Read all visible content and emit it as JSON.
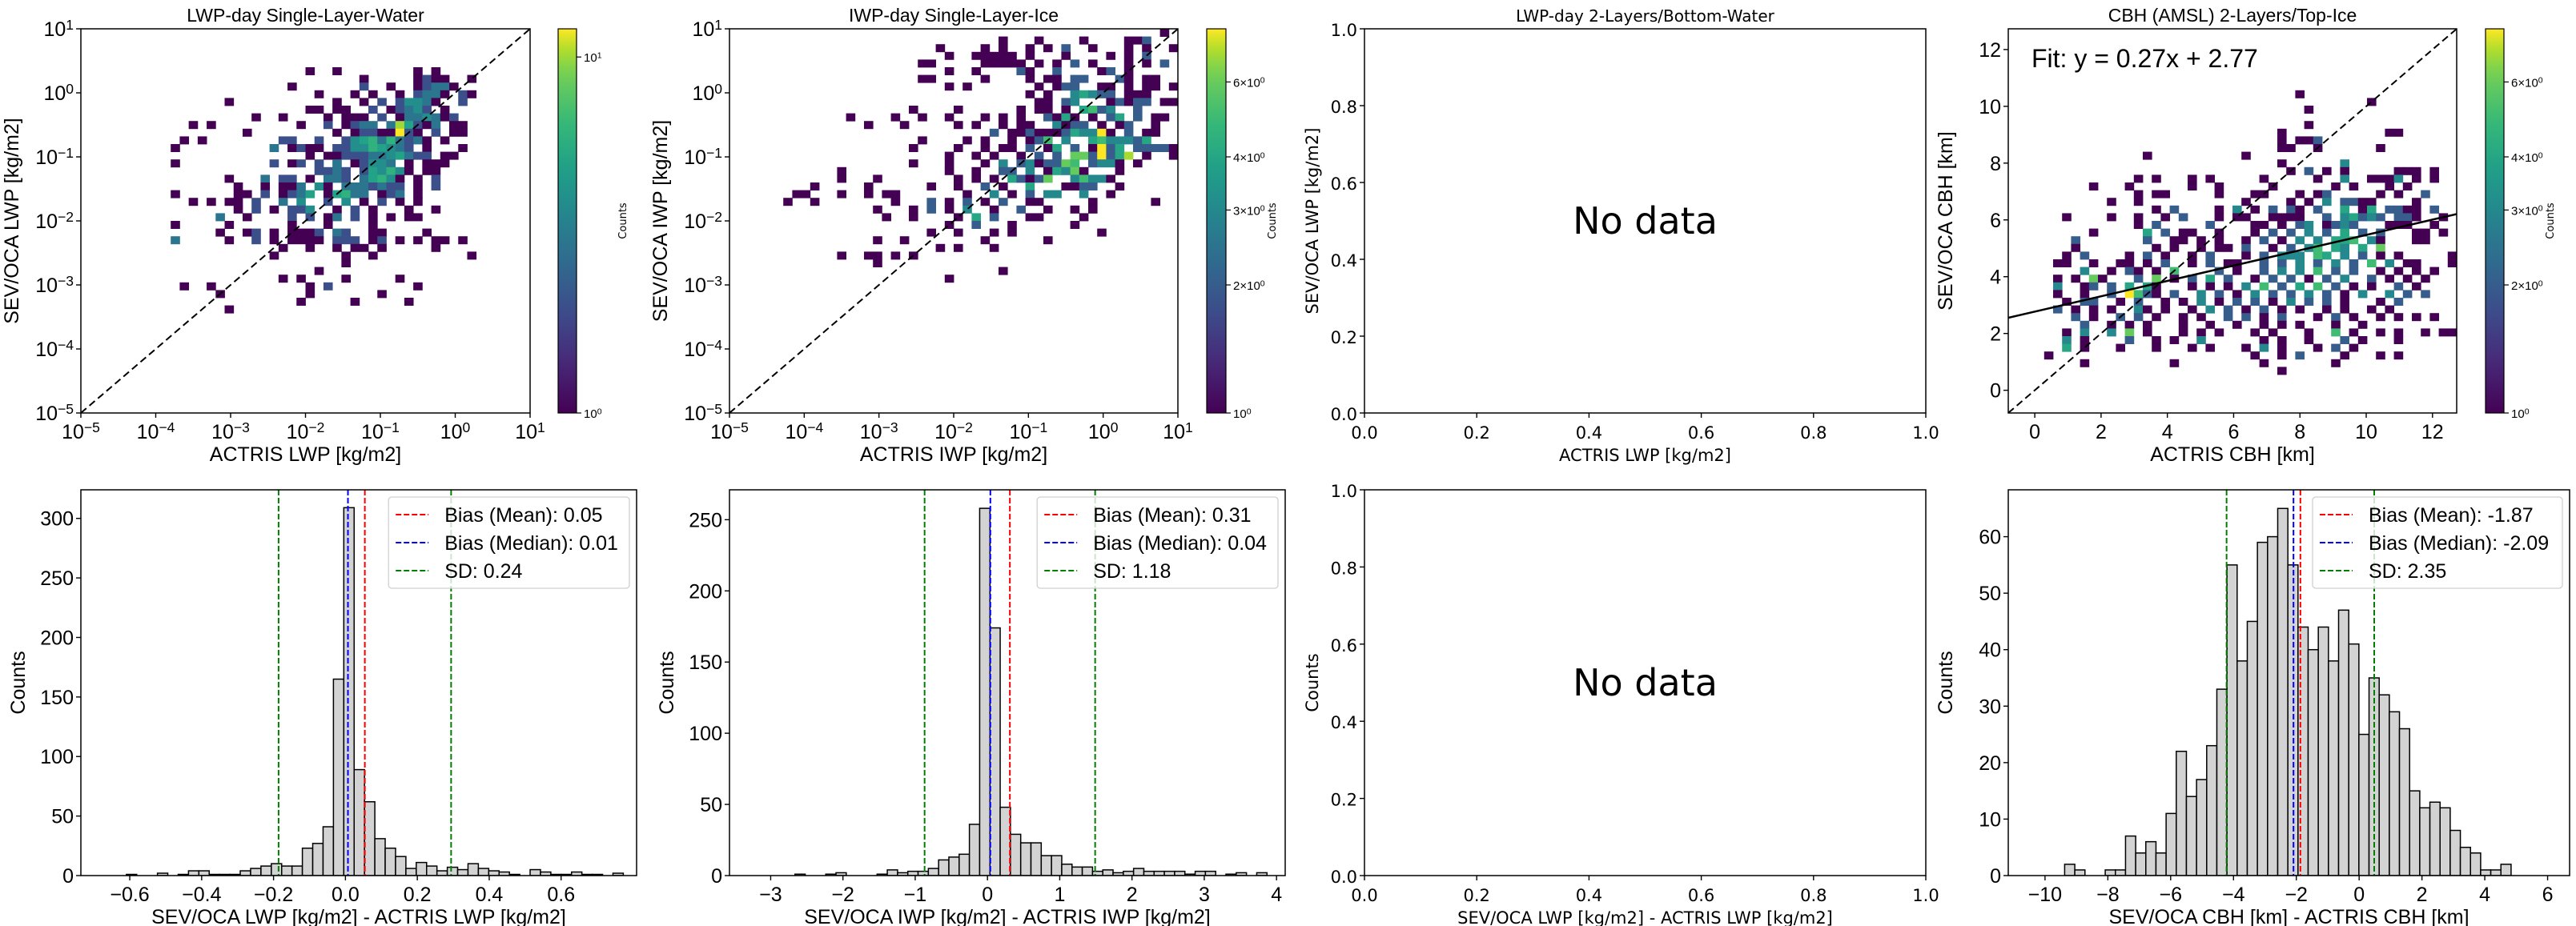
{
  "chart_data": [
    {
      "type": "heatmap",
      "title": "LWP-day Single-Layer-Water",
      "xlabel": "ACTRIS LWP [kg/m2]",
      "ylabel": "SEV/OCA LWP [kg/m2]",
      "xscale": "log",
      "yscale": "log",
      "xlim": [
        1e-05,
        10
      ],
      "ylim": [
        1e-05,
        10
      ],
      "xticks": [
        {
          "exp": -5,
          "label": "10^−5"
        },
        {
          "exp": -4,
          "label": "10^−4"
        },
        {
          "exp": -3,
          "label": "10^−3"
        },
        {
          "exp": -2,
          "label": "10^−2"
        },
        {
          "exp": -1,
          "label": "10^−1"
        },
        {
          "exp": 0,
          "label": "10^0"
        },
        {
          "exp": 1,
          "label": "10^1"
        }
      ],
      "yticks": [
        {
          "exp": -5,
          "label": "10^−5"
        },
        {
          "exp": -4,
          "label": "10^−4"
        },
        {
          "exp": -3,
          "label": "10^−3"
        },
        {
          "exp": -2,
          "label": "10^−2"
        },
        {
          "exp": -1,
          "label": "10^−1"
        },
        {
          "exp": 0,
          "label": "10^0"
        },
        {
          "exp": 1,
          "label": "10^1"
        }
      ],
      "bins_per_axis": 50,
      "reference_line": "1:1",
      "grid": {
        "encoding": "row strings, top row first; '.' = empty, 1-9 counts, a=10 b=11 c=12",
        "x_bin_start": 7,
        "top_bin": 44,
        "rows": [
          "..................1..1........1.1...",
          "........................1.....1211..1",
          "................1.......2..1..12331..",
          "...................1...1.1..1.2331.21",
          ".........1...........1..1.2.24431..2",
          "..................11.11..2.12342.1..",
          "............1..1....1.111.2.1334312..",
          ".....1.1.........1..2.1233.3a5213.11",
          "...........1.........1.12211c21.2.11",
          "....1.1........22..2..2456363231.1..",
          "...1..........3.1211.224465432.1...1",
          "..................1.112223345322.11.",
          "...1..........2.12.2.3.12443.1.111..",
          "...................2232.254641.11...",
          ".........1...3.22.1.332.35641.1.2...",
          "..........1..1.113.41.3332322.1.2...",
          "...1......11.2.1235.15633.123.1.....",
          ".....1.1.11.2..3.4..2.4.1.2.1.1.....",
          "..........1.2.1.224..1.2.1...1..1...",
          "........3..1....2.2.13.2.1.1.11.....",
          "...1.....1......1...1....1..........",
          "........1..12.1.1112.32..11....1....",
          "...3.....1..2.1.1111.222.12.1.1.11.1",
          "...............1..1..1.11.1.....1...",
          "..............1.......1..1..........1",
          "......................1.............",
          "...................1................",
          "...............1.1....1.....1......",
          "....1..1..........1.2.........1....",
          "........1.........1.......1.........",
          ".................1.....1.....1......",
          ".........1.........................."
        ]
      },
      "colorbar": {
        "label": "Counts",
        "scale": "log",
        "range": [
          1,
          12
        ],
        "ticks": [
          {
            "value": 1,
            "label": "10^0"
          },
          {
            "value": 10,
            "label": "10^1"
          }
        ]
      }
    },
    {
      "type": "heatmap",
      "title": "IWP-day Single-Layer-Ice",
      "xlabel": "ACTRIS IWP [kg/m2]",
      "ylabel": "SEV/OCA IWP [kg/m2]",
      "xscale": "log",
      "yscale": "log",
      "xlim": [
        1e-05,
        10
      ],
      "ylim": [
        1e-05,
        10
      ],
      "xticks": [
        {
          "exp": -5,
          "label": "10^−5"
        },
        {
          "exp": -4,
          "label": "10^−4"
        },
        {
          "exp": -3,
          "label": "10^−3"
        },
        {
          "exp": -2,
          "label": "10^−2"
        },
        {
          "exp": -1,
          "label": "10^−1"
        },
        {
          "exp": 0,
          "label": "10^0"
        },
        {
          "exp": 1,
          "label": "10^1"
        }
      ],
      "yticks": [
        {
          "exp": -5,
          "label": "10^−5"
        },
        {
          "exp": -4,
          "label": "10^−4"
        },
        {
          "exp": -3,
          "label": "10^−3"
        },
        {
          "exp": -2,
          "label": "10^−2"
        },
        {
          "exp": -1,
          "label": "10^−1"
        },
        {
          "exp": 0,
          "label": "10^0"
        },
        {
          "exp": 1,
          "label": "10^1"
        }
      ],
      "bins_per_axis": 50,
      "reference_line": "1:1",
      "grid": {
        "encoding": "row strings, top row first; '.' = empty, 1-9 counts",
        "x_bin_start": 2,
        "top_bin": 49,
        "rows": [
          "..............................................1..",
          "............................1...1....1....112...",
          ".....................1....1.1..1.1.2..1...1.1..11",
          "......................1..11111.1...1....1.1.2...",
          "...................11.....11111.1.1.2.1...1.1.2..",
          "......................1..1....21..2....12.1.....",
          "...................11.....1....1.11.22...21.11..1",
          "......................1.1.......1.122..11.1.11.1",
          "...............................1.1..34322.111..",
          "................................11.23...12122.11.",
          "..................1....1......1.11.1.4523..2...",
          "...........1....1..1..1...1.1.1..2141.1.24.2.11.",
          ".............1...1.....1.1..1.11..3122.1.12..1..1",
          "...........................2.112111243381.2.11..",
          "...................1....1.1..1.125.3..4533324...",
          "..................1....1..1.11.2.14.2.1824.22221",
          "......................1..1.1..1.2.2.6628247.1..1",
          "..................1...1...1.3.2312265.2331.1..",
          "..........1...........1..1..22.3.14361...1..",
          "..........1...1........1.1.1.42126..35331...",
          ".......1.....1......1..1..2.1..4...1122..1...",
          ".....11...1..1.11.......1..3.1.2.33..3..1...",
          "....1..1........1...2.1.2.1.2..11.....1......1..",
          "..............1...1.2.1.3..1..2..1..1.1......",
          "...............1..1....1.4.2...11....1........",
          "......................1..2...1......1.........",
          "....................1..1...1.1.........1......",
          "..............1..1........1......1...........",
          ".....................1.1...1.................",
          "..........1..11.1.1...........................",
          "..............1..............................",
          "............................1..................",
          "......................1......................."
        ]
      },
      "colorbar": {
        "label": "Counts",
        "scale": "log",
        "range": [
          1,
          8
        ],
        "ticks": [
          {
            "value": 2,
            "label": "2×10^0"
          },
          {
            "value": 3,
            "label": "3×10^0"
          },
          {
            "value": 4,
            "label": "4×10^0"
          },
          {
            "value": 6,
            "label": "6×10^0"
          },
          {
            "value": 1,
            "label": "10^0"
          }
        ]
      }
    },
    {
      "type": "scatter",
      "title": "LWP-day 2-Layers/Bottom-Water",
      "xlabel": "ACTRIS LWP [kg/m2]",
      "ylabel": "SEV/OCA LWP [kg/m2]",
      "xlim": [
        0,
        1
      ],
      "ylim": [
        0,
        1
      ],
      "xticks": [
        "0.0",
        "0.2",
        "0.4",
        "0.6",
        "0.8",
        "1.0"
      ],
      "yticks": [
        "0.0",
        "0.2",
        "0.4",
        "0.6",
        "0.8",
        "1.0"
      ],
      "annotation": "No data"
    },
    {
      "type": "heatmap",
      "title": "CBH (AMSL) 2-Layers/Top-Ice",
      "xlabel": "ACTRIS CBH [km]",
      "ylabel": "SEV/OCA CBH [km]",
      "xscale": "linear",
      "yscale": "linear",
      "xlim": [
        -0.8,
        12.73
      ],
      "ylim": [
        -0.8,
        12.73
      ],
      "xticks": [
        0,
        2,
        4,
        6,
        8,
        10,
        12
      ],
      "yticks": [
        0,
        2,
        4,
        6,
        8,
        10,
        12
      ],
      "bins_per_axis": 50,
      "reference_line": "1:1",
      "fit": {
        "slope": 0.27,
        "intercept": 2.77,
        "label": "Fit: y = 0.27x + 2.77"
      },
      "grid": {
        "encoding": "row strings, top row first; '.' = empty, 1-9 counts",
        "x_bin_start": 3,
        "top_bin": 41,
        "rows": [
          ".............................1",
          ".....................................1",
          "..............................1",
          "",
          "..............................1",
          "...........................1...........11",
          "...........................1.112",
          "...........................11..1......1",
          "............1..........1",
          "...........................1......3",
          "............................1.2.1.1.....111.1",
          "...........1.1...1.1.....1.....1..3..1113.1.1",
          "......1...1......1..1.....1......1.1...1.1...",
          "...........1.11.....1...11...1.12.....1.1..2.",
          "........1..1...........1....1.1.3.2211....1...",
          ".............1.2....1.3.1.2.21.2..4.14.2211.2..1",
          "...1....1..1..1.2...1.11..1111..2.34232.221..1",
          "...........1.2.....2....11.1.23.1232...111..1.",
          "......1.....4.2.11..1...1.2.2.3.2.4.2.2...11.1..",
          "....2.......2..11.1.1..1.2.1.3.3.445.31...11....",
          "....1........1.1..1.11.2..1.2.35.43.4.6...",
          "...1.2....1.2.1..1.2...1.2.333.54.3.2.1.1.....1.",
          "..11..1..11.1.2..1.2.11..2.2.3.2.3.2.5.3.11...11",
          ".....3..1.21.1.5....2.1..2.3.3.5.2.2..1.1.1.1",
          "..1.1.61...2.6.1.2.4.2..1.2.2.1.2.3..2.1.1.1.",
          "..3..12.2.4.41...1.1.1.3.5.2.4.5.2.1.1..2.1....1",
          "..1..1..2.8521.2..3.2.1.3.2.2.3.2.1.3..3.2.2...1",
          "...1.22..1.2..1.1.3.1.2.2.1.3.2.2.1...1.2",
          "..2.1.1.1..31.1..1.3.2.1.2.1.1..1.1..1.1...",
          "....2.1..2.2.1..1.1..2.2.1.2...1.2.1..1.1.1.1",
          ".....2..1.1.1...1..1..1..1.1.1...1..1..",
          "...1.3..3.6.1...1.1.1...1.1...1..5.1..1.1..1.11",
          "...3.1....2..1.1..3......1.1..1...2.1...1..",
          "...4.1...1...1...1.1...1.3.1...1.2.1..",
          ".1......................1..1.2....1...1.1",
          ".....1.........1.........1.......1",
          "...........................1"
        ]
      },
      "colorbar": {
        "label": "Counts",
        "scale": "log",
        "range": [
          1,
          8
        ],
        "ticks": [
          {
            "value": 2,
            "label": "2×10^0"
          },
          {
            "value": 3,
            "label": "3×10^0"
          },
          {
            "value": 4,
            "label": "4×10^0"
          },
          {
            "value": 6,
            "label": "6×10^0"
          },
          {
            "value": 1,
            "label": "10^0"
          }
        ]
      }
    },
    {
      "type": "bar",
      "title": "",
      "xlabel": "SEV/OCA LWP [kg/m2] - ACTRIS LWP [kg/m2]",
      "ylabel": "Counts",
      "xlim": [
        -0.736,
        0.81
      ],
      "ylim": [
        0,
        324
      ],
      "xticks": [
        -0.6,
        -0.4,
        -0.2,
        0.0,
        0.2,
        0.4,
        0.6
      ],
      "xtick_labels": [
        "−0.6",
        "−0.4",
        "−0.2",
        "0.0",
        "0.2",
        "0.4",
        "0.6"
      ],
      "yticks": [
        0,
        50,
        100,
        150,
        200,
        250,
        300
      ],
      "bin_start": -0.667,
      "bin_width": 0.0288,
      "counts": [
        0,
        0,
        1,
        0,
        0,
        2,
        0,
        1,
        4,
        4,
        1,
        1,
        1,
        4,
        6,
        8,
        10,
        8,
        8,
        23,
        27,
        41,
        165,
        309,
        89,
        62,
        31,
        23,
        16,
        6,
        11,
        8,
        4,
        7,
        5,
        10,
        6,
        4,
        3,
        1,
        0,
        5,
        3,
        1,
        1,
        3,
        1,
        1,
        0,
        2
      ],
      "legend_position": "top-right",
      "lines": [
        {
          "label": "Bias (Mean): 0.05",
          "values": [
            0.054
          ],
          "color": "#ff0000"
        },
        {
          "label": "Bias (Median): 0.01",
          "values": [
            0.007
          ],
          "color": "#0000ff"
        },
        {
          "label": "SD: 0.24",
          "values": [
            -0.186,
            0.294
          ],
          "color": "#008000"
        }
      ]
    },
    {
      "type": "bar",
      "title": "",
      "xlabel": "SEV/OCA IWP [kg/m2] - ACTRIS IWP [kg/m2]",
      "ylabel": "Counts",
      "xlim": [
        -3.57,
        4.12
      ],
      "ylim": [
        0,
        271
      ],
      "xticks": [
        -3,
        -2,
        -1,
        0,
        1,
        2,
        3,
        4
      ],
      "xtick_labels": [
        "−3",
        "−2",
        "−1",
        "0",
        "1",
        "2",
        "3",
        "4"
      ],
      "yticks": [
        0,
        50,
        100,
        150,
        200,
        250
      ],
      "bin_start": -3.232,
      "bin_width": 0.142,
      "counts": [
        0,
        0,
        0,
        0,
        1,
        0,
        0,
        1,
        2,
        0,
        0,
        0,
        1,
        4,
        2,
        3,
        3,
        5,
        11,
        13,
        15,
        36,
        258,
        174,
        48,
        29,
        23,
        23,
        14,
        14,
        8,
        6,
        6,
        3,
        4,
        2,
        3,
        5,
        3,
        3,
        3,
        3,
        1,
        3,
        3,
        0,
        1,
        2,
        0,
        2
      ],
      "legend_position": "top-right",
      "lines": [
        {
          "label": "Bias (Mean): 0.31",
          "values": [
            0.31
          ],
          "color": "#ff0000"
        },
        {
          "label": "Bias (Median): 0.04",
          "values": [
            0.04
          ],
          "color": "#0000ff"
        },
        {
          "label": "SD: 1.18",
          "values": [
            -0.87,
            1.49
          ],
          "color": "#008000"
        }
      ]
    },
    {
      "type": "bar",
      "title": "",
      "xlabel": "SEV/OCA LWP [kg/m2] - ACTRIS LWP [kg/m2]",
      "ylabel": "Counts",
      "xlim": [
        0,
        1
      ],
      "ylim": [
        0,
        1
      ],
      "xticks": [
        "0.0",
        "0.2",
        "0.4",
        "0.6",
        "0.8",
        "1.0"
      ],
      "yticks": [
        "0.0",
        "0.2",
        "0.4",
        "0.6",
        "0.8",
        "1.0"
      ],
      "annotation": "No data"
    },
    {
      "type": "bar",
      "title": "",
      "xlabel": "SEV/OCA CBH [km] - ACTRIS CBH [km]",
      "ylabel": "Counts",
      "xlim": [
        -11.17,
        6.7
      ],
      "ylim": [
        0,
        68.3
      ],
      "xticks": [
        -10,
        -8,
        -6,
        -4,
        -2,
        0,
        2,
        4,
        6
      ],
      "xtick_labels": [
        "−10",
        "−8",
        "−6",
        "−4",
        "−2",
        "0",
        "2",
        "4",
        "6"
      ],
      "yticks": [
        0,
        10,
        20,
        30,
        40,
        50,
        60
      ],
      "bin_start": -10.344,
      "bin_width": 0.323,
      "counts": [
        0,
        0,
        0,
        2,
        1,
        0,
        0,
        1,
        1,
        7,
        4,
        6,
        4,
        11,
        22,
        14,
        17,
        23,
        33,
        55,
        38,
        45,
        59,
        60,
        65,
        55,
        44,
        40,
        44,
        38,
        47,
        41,
        25,
        35,
        32,
        29,
        26,
        15,
        12,
        13,
        12,
        8,
        5,
        4,
        1,
        1,
        2,
        0,
        0,
        0
      ],
      "legend_position": "top-right",
      "lines": [
        {
          "label": "Bias (Mean): -1.87",
          "values": [
            -1.87
          ],
          "color": "#ff0000"
        },
        {
          "label": "Bias (Median): -2.09",
          "values": [
            -2.09
          ],
          "color": "#0000ff"
        },
        {
          "label": "SD: 2.35",
          "values": [
            -4.22,
            0.48
          ],
          "color": "#008000"
        }
      ]
    }
  ]
}
